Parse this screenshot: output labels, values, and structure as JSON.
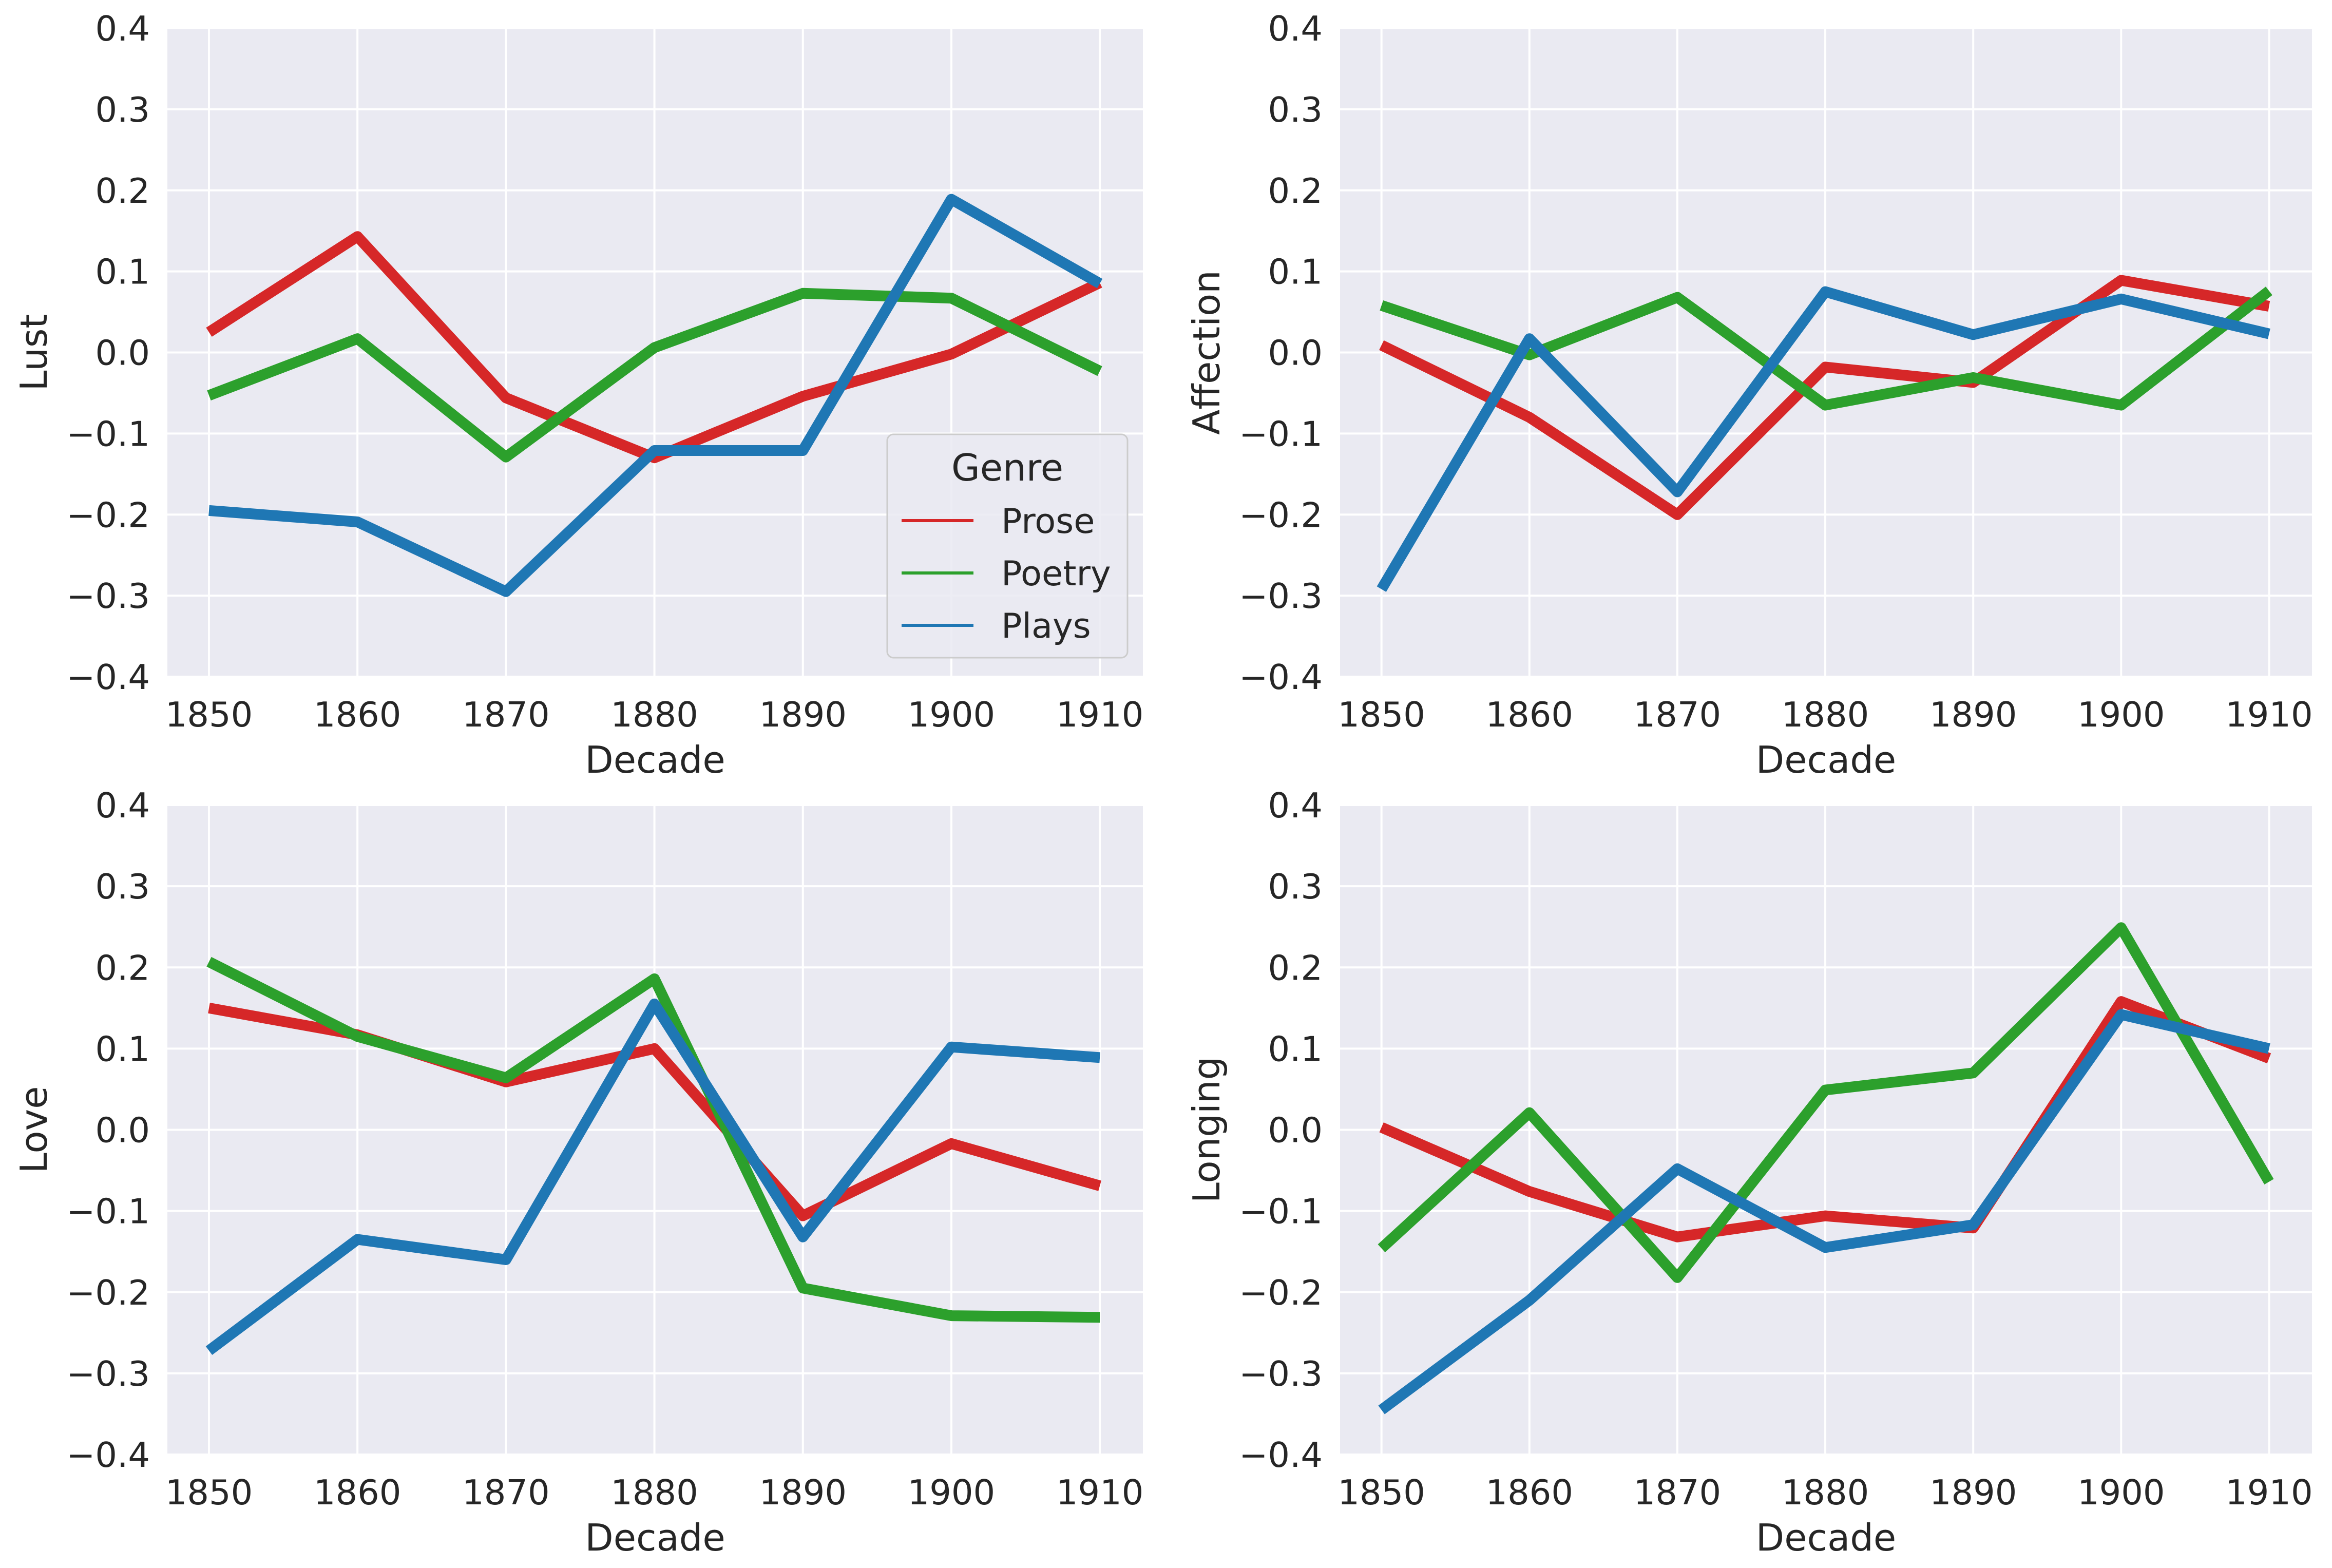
{
  "chart_data": [
    {
      "type": "line",
      "xlabel": "Decade",
      "ylabel": "Lust",
      "x": [
        1850,
        1860,
        1870,
        1880,
        1890,
        1900,
        1910
      ],
      "ylim": [
        -0.4,
        0.4
      ],
      "yticks": [
        "0.4",
        "0.3",
        "0.2",
        "0.1",
        "0.0",
        "−0.1",
        "−0.2",
        "−0.3",
        "−0.4"
      ],
      "grid": true,
      "legend": {
        "title": "Genre",
        "placement": "lower-right",
        "entries": [
          "Prose",
          "Poetry",
          "Plays"
        ]
      },
      "series": [
        {
          "name": "Prose",
          "color": "#d62728",
          "values": [
            0.025,
            0.143,
            -0.056,
            -0.13,
            -0.054,
            -0.002,
            0.086
          ]
        },
        {
          "name": "Poetry",
          "color": "#2ca02c",
          "values": [
            -0.053,
            0.017,
            -0.129,
            0.006,
            0.073,
            0.067,
            -0.023
          ]
        },
        {
          "name": "Plays",
          "color": "#1f77b4",
          "values": [
            -0.195,
            -0.209,
            -0.295,
            -0.121,
            -0.121,
            0.189,
            0.085
          ]
        }
      ]
    },
    {
      "type": "line",
      "xlabel": "Decade",
      "ylabel": "Affection",
      "x": [
        1850,
        1860,
        1870,
        1880,
        1890,
        1900,
        1910
      ],
      "ylim": [
        -0.4,
        0.4
      ],
      "yticks": [
        "0.4",
        "0.3",
        "0.2",
        "0.1",
        "0.0",
        "−0.1",
        "−0.2",
        "−0.3",
        "−0.4"
      ],
      "grid": true,
      "series": [
        {
          "name": "Prose",
          "color": "#d62728",
          "values": [
            0.009,
            -0.08,
            -0.2,
            -0.018,
            -0.037,
            0.089,
            0.057
          ]
        },
        {
          "name": "Poetry",
          "color": "#2ca02c",
          "values": [
            0.058,
            -0.003,
            0.068,
            -0.065,
            -0.031,
            -0.065,
            0.076
          ]
        },
        {
          "name": "Plays",
          "color": "#1f77b4",
          "values": [
            -0.292,
            0.017,
            -0.172,
            0.075,
            0.022,
            0.066,
            0.023
          ]
        }
      ]
    },
    {
      "type": "line",
      "xlabel": "Decade",
      "ylabel": "Love",
      "x": [
        1850,
        1860,
        1870,
        1880,
        1890,
        1900,
        1910
      ],
      "ylim": [
        -0.4,
        0.4
      ],
      "yticks": [
        "0.4",
        "0.3",
        "0.2",
        "0.1",
        "0.0",
        "−0.1",
        "−0.2",
        "−0.3",
        "−0.4"
      ],
      "grid": true,
      "series": [
        {
          "name": "Prose",
          "color": "#d62728",
          "values": [
            0.15,
            0.117,
            0.059,
            0.1,
            -0.106,
            -0.017,
            -0.069
          ]
        },
        {
          "name": "Poetry",
          "color": "#2ca02c",
          "values": [
            0.207,
            0.115,
            0.064,
            0.186,
            -0.195,
            -0.229,
            -0.231
          ]
        },
        {
          "name": "Plays",
          "color": "#1f77b4",
          "values": [
            -0.272,
            -0.135,
            -0.16,
            0.155,
            -0.132,
            0.102,
            0.089
          ]
        }
      ]
    },
    {
      "type": "line",
      "xlabel": "Decade",
      "ylabel": "Longing",
      "x": [
        1850,
        1860,
        1870,
        1880,
        1890,
        1900,
        1910
      ],
      "ylim": [
        -0.4,
        0.4
      ],
      "yticks": [
        "0.4",
        "0.3",
        "0.2",
        "0.1",
        "0.0",
        "−0.1",
        "−0.2",
        "−0.3",
        "−0.4"
      ],
      "grid": true,
      "series": [
        {
          "name": "Prose",
          "color": "#d62728",
          "values": [
            0.003,
            -0.076,
            -0.132,
            -0.106,
            -0.121,
            0.158,
            0.088
          ]
        },
        {
          "name": "Poetry",
          "color": "#2ca02c",
          "values": [
            -0.146,
            0.021,
            -0.182,
            0.049,
            0.07,
            0.249,
            -0.064
          ]
        },
        {
          "name": "Plays",
          "color": "#1f77b4",
          "values": [
            -0.345,
            -0.21,
            -0.048,
            -0.145,
            -0.117,
            0.142,
            0.1
          ]
        }
      ]
    }
  ]
}
